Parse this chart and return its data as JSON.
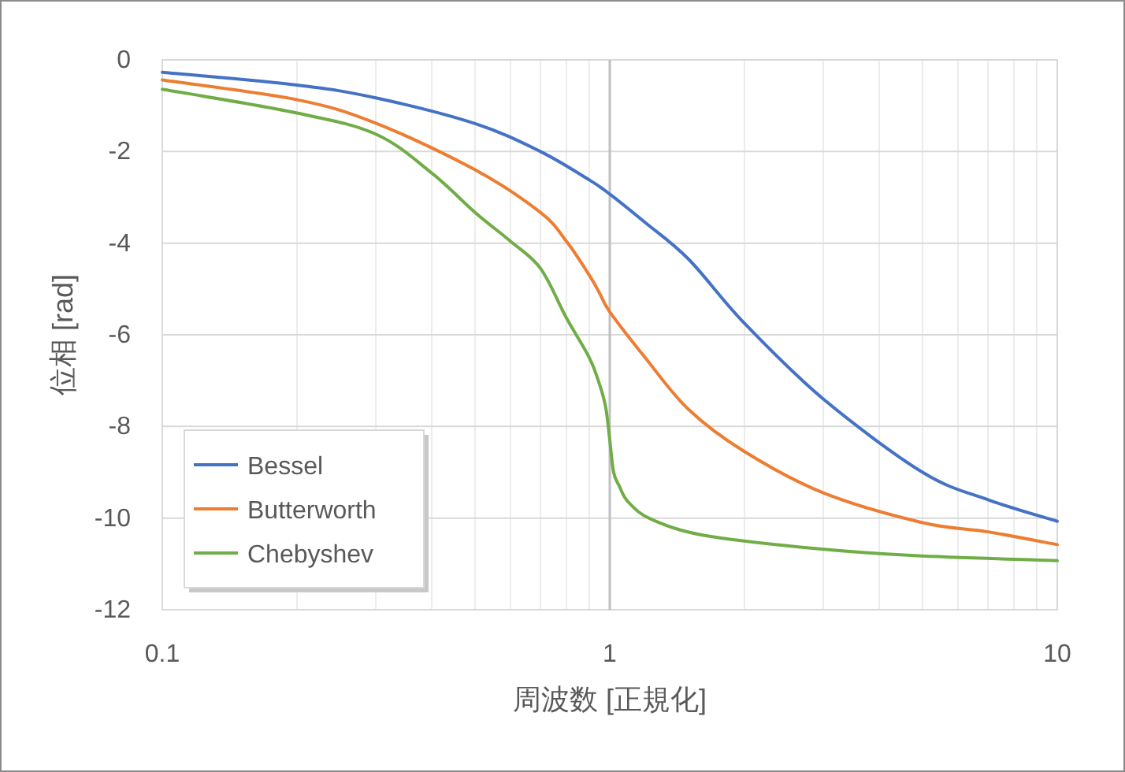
{
  "chart_data": {
    "type": "line",
    "xlabel": "周波数 [正規化]",
    "ylabel": "位相 [rad]",
    "log": "x",
    "xlim": [
      0.1,
      10
    ],
    "xticks": [
      0.1,
      1,
      10
    ],
    "ylim": [
      -12,
      0
    ],
    "yticks": [
      -12,
      -10,
      -8,
      -6,
      -4,
      -2,
      0
    ],
    "grid": true,
    "legend": "bottom left",
    "marker": "none",
    "line_style": "solid",
    "ref_lines": [
      {
        "axis": "x",
        "value": 1,
        "color": "#bfbfbf"
      }
    ],
    "series": [
      {
        "name": "Bessel",
        "color": "#4472c4",
        "x": [
          0.1,
          0.2,
          0.3,
          0.5,
          0.7,
          0.9,
          1,
          1.2,
          1.5,
          2,
          3,
          5,
          7,
          10
        ],
        "values": [
          -0.27,
          -0.55,
          -0.83,
          -1.39,
          -2.0,
          -2.62,
          -2.93,
          -3.55,
          -4.35,
          -5.75,
          -7.4,
          -9.0,
          -9.6,
          -10.07
        ]
      },
      {
        "name": "Butterworth",
        "color": "#ed7d31",
        "x": [
          0.1,
          0.2,
          0.3,
          0.5,
          0.7,
          0.8,
          0.9,
          0.95,
          1,
          1.2,
          1.5,
          2,
          3,
          5,
          7,
          10
        ],
        "values": [
          -0.44,
          -0.87,
          -1.38,
          -2.4,
          -3.33,
          -3.96,
          -4.7,
          -5.1,
          -5.5,
          -6.5,
          -7.63,
          -8.55,
          -9.45,
          -10.1,
          -10.3,
          -10.58
        ]
      },
      {
        "name": "Chebyshev",
        "color": "#70ad47",
        "x": [
          0.1,
          0.2,
          0.3,
          0.4,
          0.5,
          0.6,
          0.7,
          0.8,
          0.9,
          0.95,
          0.98,
          1,
          1.02,
          1.05,
          1.1,
          1.24,
          1.63,
          2.78,
          4.8,
          10
        ],
        "values": [
          -0.64,
          -1.16,
          -1.62,
          -2.47,
          -3.33,
          -3.96,
          -4.55,
          -5.63,
          -6.5,
          -7.1,
          -7.6,
          -8.3,
          -9.0,
          -9.3,
          -9.65,
          -10.03,
          -10.38,
          -10.65,
          -10.82,
          -10.93
        ]
      }
    ]
  }
}
